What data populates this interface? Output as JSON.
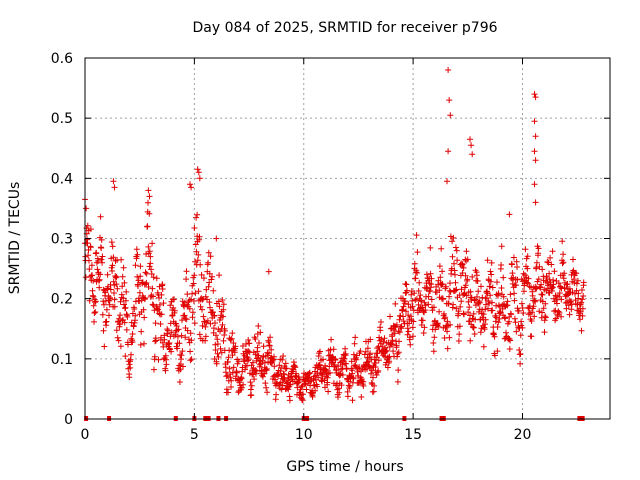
{
  "chart_data": {
    "type": "scatter",
    "title": "Day 084 of 2025, SRMTID for receiver p796",
    "xlabel": "GPS time / hours",
    "ylabel": "SRMTID / TECUs",
    "xlim": [
      0,
      24
    ],
    "ylim": [
      0,
      0.6
    ],
    "xticks": [
      0,
      5,
      10,
      15,
      20
    ],
    "yticks": [
      0,
      0.1,
      0.2,
      0.3,
      0.4,
      0.5,
      0.6
    ],
    "xtick_labels": [
      "0",
      "5",
      "10",
      "15",
      "20"
    ],
    "ytick_labels": [
      "0",
      "0.1",
      "0.2",
      "0.3",
      "0.4",
      "0.5",
      "0.6"
    ],
    "grid": true,
    "marker": "+",
    "color": "#e00000",
    "trend": [
      [
        0.0,
        0.26
      ],
      [
        0.5,
        0.24
      ],
      [
        1.0,
        0.21
      ],
      [
        1.5,
        0.22
      ],
      [
        2.0,
        0.12
      ],
      [
        2.5,
        0.2
      ],
      [
        3.0,
        0.24
      ],
      [
        3.5,
        0.15
      ],
      [
        4.0,
        0.14
      ],
      [
        4.5,
        0.13
      ],
      [
        5.0,
        0.24
      ],
      [
        5.5,
        0.21
      ],
      [
        6.0,
        0.17
      ],
      [
        6.5,
        0.11
      ],
      [
        7.0,
        0.08
      ],
      [
        7.5,
        0.09
      ],
      [
        8.0,
        0.1
      ],
      [
        8.5,
        0.09
      ],
      [
        9.0,
        0.07
      ],
      [
        9.5,
        0.07
      ],
      [
        10.0,
        0.05
      ],
      [
        10.5,
        0.07
      ],
      [
        11.0,
        0.08
      ],
      [
        11.5,
        0.08
      ],
      [
        12.0,
        0.08
      ],
      [
        12.5,
        0.08
      ],
      [
        13.0,
        0.09
      ],
      [
        13.5,
        0.11
      ],
      [
        14.0,
        0.12
      ],
      [
        14.5,
        0.16
      ],
      [
        15.0,
        0.2
      ],
      [
        15.5,
        0.2
      ],
      [
        16.0,
        0.19
      ],
      [
        16.5,
        0.2
      ],
      [
        17.0,
        0.22
      ],
      [
        17.5,
        0.21
      ],
      [
        18.0,
        0.19
      ],
      [
        18.5,
        0.2
      ],
      [
        19.0,
        0.17
      ],
      [
        19.5,
        0.19
      ],
      [
        20.0,
        0.19
      ],
      [
        20.5,
        0.22
      ],
      [
        21.0,
        0.22
      ],
      [
        21.5,
        0.21
      ],
      [
        22.0,
        0.22
      ],
      [
        22.5,
        0.21
      ],
      [
        22.8,
        0.2
      ]
    ],
    "spread": [
      [
        0.0,
        0.06
      ],
      [
        1.0,
        0.07
      ],
      [
        2.0,
        0.06
      ],
      [
        3.0,
        0.07
      ],
      [
        4.0,
        0.05
      ],
      [
        5.0,
        0.08
      ],
      [
        6.0,
        0.06
      ],
      [
        7.0,
        0.03
      ],
      [
        8.0,
        0.04
      ],
      [
        9.0,
        0.03
      ],
      [
        10.0,
        0.02
      ],
      [
        11.0,
        0.03
      ],
      [
        12.0,
        0.03
      ],
      [
        13.0,
        0.03
      ],
      [
        14.0,
        0.04
      ],
      [
        15.0,
        0.05
      ],
      [
        16.0,
        0.05
      ],
      [
        17.0,
        0.06
      ],
      [
        18.0,
        0.05
      ],
      [
        19.0,
        0.06
      ],
      [
        20.0,
        0.06
      ],
      [
        21.0,
        0.05
      ],
      [
        22.0,
        0.04
      ],
      [
        22.8,
        0.04
      ]
    ],
    "n_points": 1600,
    "spikes": [
      [
        0.0,
        0.365
      ],
      [
        0.05,
        0.35
      ],
      [
        1.3,
        0.395
      ],
      [
        1.35,
        0.385
      ],
      [
        2.9,
        0.38
      ],
      [
        2.95,
        0.37
      ],
      [
        4.8,
        0.39
      ],
      [
        4.85,
        0.385
      ],
      [
        5.15,
        0.415
      ],
      [
        5.2,
        0.41
      ],
      [
        5.25,
        0.4
      ],
      [
        6.0,
        0.3
      ],
      [
        8.4,
        0.245
      ],
      [
        16.6,
        0.58
      ],
      [
        16.65,
        0.53
      ],
      [
        16.7,
        0.505
      ],
      [
        16.6,
        0.445
      ],
      [
        16.55,
        0.395
      ],
      [
        17.6,
        0.465
      ],
      [
        17.65,
        0.455
      ],
      [
        17.7,
        0.44
      ],
      [
        19.4,
        0.34
      ],
      [
        20.55,
        0.54
      ],
      [
        20.6,
        0.535
      ],
      [
        20.55,
        0.495
      ],
      [
        20.6,
        0.47
      ],
      [
        20.55,
        0.445
      ],
      [
        20.6,
        0.43
      ],
      [
        20.55,
        0.39
      ],
      [
        20.6,
        0.36
      ]
    ],
    "zero_markers": [
      0.05,
      1.1,
      4.15,
      5.0,
      5.5,
      5.65,
      6.1,
      6.45,
      10.0,
      10.15,
      14.6,
      16.3,
      16.4,
      22.6,
      22.75
    ]
  }
}
